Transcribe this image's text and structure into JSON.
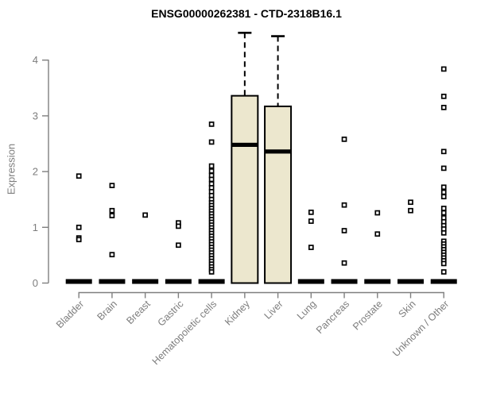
{
  "colors": {
    "box_fill": "#ECE7CE",
    "box_stroke": "#000000",
    "axis": "#7f7f7f",
    "tick_text": "#7d7d7d",
    "point": "#000000",
    "background": "#ffffff"
  },
  "chart_data": {
    "type": "boxplot",
    "title": "ENSG00000262381 - CTD-2318B16.1",
    "ylabel": "Expression",
    "xlabel": "",
    "ylim": [
      0,
      4
    ],
    "yticks": [
      0,
      1,
      2,
      3,
      4
    ],
    "grid": false,
    "legend": false,
    "categories": [
      "Bladder",
      "Brain",
      "Breast",
      "Gastric",
      "Hematopoietic cells",
      "Kidney",
      "Liver",
      "Lung",
      "Pancreas",
      "Prostate",
      "Skin",
      "Unknown / Other"
    ],
    "boxes": [
      {
        "category": "Bladder",
        "min": 0,
        "q1": 0,
        "median": 0,
        "q3": 0,
        "max": 0,
        "outliers": [
          1.92,
          1.0,
          0.81,
          0.78
        ]
      },
      {
        "category": "Brain",
        "min": 0,
        "q1": 0,
        "median": 0,
        "q3": 0,
        "max": 0,
        "outliers": [
          1.75,
          1.3,
          1.21,
          0.51
        ]
      },
      {
        "category": "Breast",
        "min": 0,
        "q1": 0,
        "median": 0,
        "q3": 0,
        "max": 0,
        "outliers": [
          1.22
        ]
      },
      {
        "category": "Gastric",
        "min": 0,
        "q1": 0,
        "median": 0,
        "q3": 0,
        "max": 0,
        "outliers": [
          1.08,
          1.02,
          0.68
        ]
      },
      {
        "category": "Hematopoietic cells",
        "min": 0,
        "q1": 0,
        "median": 0,
        "q3": 0,
        "max": 0,
        "outliers": [
          2.85,
          2.53,
          2.1,
          2.01,
          1.93,
          1.86,
          1.78,
          1.71,
          1.64,
          1.57,
          1.5,
          1.44,
          1.39,
          1.34,
          1.29,
          1.24,
          1.19,
          1.14,
          1.09,
          1.04,
          0.99,
          0.94,
          0.89,
          0.84,
          0.79,
          0.74,
          0.69,
          0.64,
          0.59,
          0.54,
          0.49,
          0.44,
          0.39,
          0.34,
          0.29,
          0.24,
          0.2
        ]
      },
      {
        "category": "Kidney",
        "min": 0,
        "q1": 0,
        "median": 2.48,
        "q3": 3.36,
        "max": 4.49,
        "outliers": []
      },
      {
        "category": "Liver",
        "min": 0,
        "q1": 0,
        "median": 2.36,
        "q3": 3.17,
        "max": 4.43,
        "outliers": []
      },
      {
        "category": "Lung",
        "min": 0,
        "q1": 0,
        "median": 0,
        "q3": 0,
        "max": 0,
        "outliers": [
          1.27,
          1.11,
          0.64
        ]
      },
      {
        "category": "Pancreas",
        "min": 0,
        "q1": 0,
        "median": 0,
        "q3": 0,
        "max": 0,
        "outliers": [
          2.58,
          1.4,
          0.94,
          0.36
        ]
      },
      {
        "category": "Prostate",
        "min": 0,
        "q1": 0,
        "median": 0,
        "q3": 0,
        "max": 0,
        "outliers": [
          1.26,
          0.88
        ]
      },
      {
        "category": "Skin",
        "min": 0,
        "q1": 0,
        "median": 0,
        "q3": 0,
        "max": 0,
        "outliers": [
          1.45,
          1.3
        ]
      },
      {
        "category": "Unknown / Other",
        "min": 0,
        "q1": 0,
        "median": 0,
        "q3": 0,
        "max": 0,
        "outliers": [
          3.84,
          3.35,
          3.15,
          2.36,
          2.06,
          1.72,
          1.63,
          1.55,
          1.34,
          1.26,
          1.17,
          1.1,
          1.03,
          0.97,
          0.9,
          0.75,
          0.7,
          0.65,
          0.6,
          0.55,
          0.5,
          0.45,
          0.4,
          0.35,
          0.2
        ]
      }
    ]
  }
}
